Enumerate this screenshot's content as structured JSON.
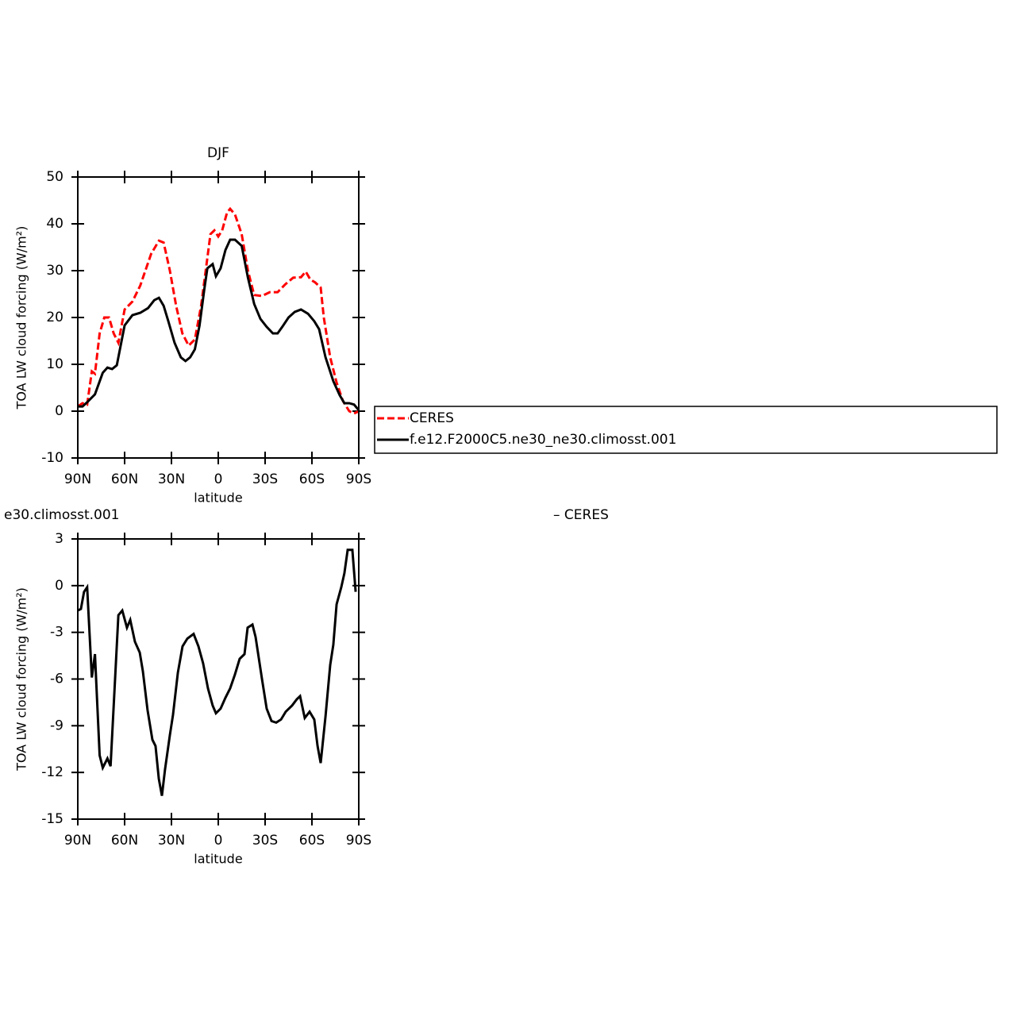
{
  "chart_data": [
    {
      "type": "line",
      "title": "DJF",
      "ylabel": "TOA LW cloud forcing (W/m²)",
      "xlabel": "latitude",
      "xlim": [
        90,
        -90
      ],
      "xticks": [
        {
          "value": 90,
          "label": "90N"
        },
        {
          "value": 60,
          "label": "60N"
        },
        {
          "value": 30,
          "label": "30N"
        },
        0,
        {
          "value": -30,
          "label": "30S"
        },
        {
          "value": -60,
          "label": "60S"
        },
        {
          "value": -90,
          "label": "90S"
        }
      ],
      "ylim": [
        -10,
        50
      ],
      "yticks": [
        -10,
        0,
        10,
        20,
        30,
        40,
        50
      ],
      "legend": "right",
      "series": [
        {
          "name": "CERES",
          "color": "#ff0000",
          "linestyle": "dashed",
          "x": [
            90,
            87,
            84,
            81,
            79,
            76,
            73,
            70,
            67,
            64,
            60,
            55,
            50,
            43,
            38,
            35,
            31,
            27,
            23,
            19,
            15,
            11,
            7,
            5,
            2.5,
            0,
            -2.5,
            -5.6,
            -7.6,
            -10.7,
            -15,
            -19,
            -23,
            -28,
            -33,
            -38,
            -43,
            -48,
            -53,
            -56,
            -59,
            -62,
            -65.6,
            -67.6,
            -71.7,
            -75.8,
            -79.8,
            -83.9,
            -87,
            -90
          ],
          "values": [
            1.0,
            1.7,
            1.4,
            8.5,
            8.0,
            16.6,
            20.0,
            20.0,
            16.6,
            14.6,
            21.7,
            23.4,
            26.8,
            33.6,
            36.4,
            36.0,
            30.0,
            22.5,
            16.6,
            14.0,
            15.3,
            22.5,
            32.7,
            37.8,
            38.6,
            37.3,
            38.6,
            42.4,
            43.2,
            42.0,
            37.8,
            30.0,
            24.8,
            24.6,
            25.4,
            25.4,
            27.1,
            28.5,
            28.6,
            29.8,
            28.1,
            27.5,
            26.4,
            20.0,
            11.5,
            6.1,
            2.2,
            0.0,
            -0.5,
            0.0
          ]
        },
        {
          "name": "f.e12.F2000C5.ne30_ne30.climosst.001",
          "color": "#000000",
          "linestyle": "solid",
          "x": [
            90,
            87,
            84,
            79,
            74,
            71,
            68,
            65,
            60,
            55,
            50,
            45,
            41,
            38,
            35,
            32,
            28,
            24,
            21,
            18,
            15,
            12,
            9,
            7,
            3.6,
            1.5,
            -1.5,
            -4.6,
            -7.6,
            -10.7,
            -15,
            -19,
            -23,
            -27,
            -31,
            -35,
            -38,
            -41,
            -45,
            -49,
            -53,
            -57.5,
            -61.5,
            -64.6,
            -68.7,
            -73.7,
            -77.8,
            -80.8,
            -83.9,
            -87,
            -90
          ],
          "values": [
            1.0,
            1.0,
            1.9,
            3.6,
            8.2,
            9.3,
            9.0,
            9.8,
            18.3,
            20.5,
            21.0,
            22.0,
            23.7,
            24.2,
            22.5,
            19.2,
            14.6,
            11.5,
            10.7,
            11.5,
            13.2,
            18.3,
            25.9,
            30.5,
            31.4,
            28.8,
            30.5,
            34.4,
            36.6,
            36.6,
            35.3,
            28.5,
            22.9,
            19.7,
            18.0,
            16.6,
            16.6,
            18.0,
            20.0,
            21.2,
            21.7,
            20.8,
            19.2,
            17.5,
            11.5,
            6.4,
            3.4,
            1.7,
            1.7,
            1.4,
            0.2
          ]
        }
      ]
    },
    {
      "type": "line",
      "title": "e30.climosst.001",
      "title_right": "– CERES",
      "ylabel": "TOA LW cloud forcing (W/m²)",
      "xlabel": "latitude",
      "xlim": [
        90,
        -90
      ],
      "xticks": [
        {
          "value": 90,
          "label": "90N"
        },
        {
          "value": 60,
          "label": "60N"
        },
        {
          "value": 30,
          "label": "30N"
        },
        0,
        {
          "value": -30,
          "label": "30S"
        },
        {
          "value": -60,
          "label": "60S"
        },
        {
          "value": -90,
          "label": "90S"
        }
      ],
      "ylim": [
        -15,
        3
      ],
      "yticks": [
        -15,
        -12,
        -9,
        -6,
        -3,
        0,
        3
      ],
      "series": [
        {
          "color": "#000000",
          "linestyle": "solid",
          "x": [
            90,
            88,
            86,
            84,
            81,
            79,
            76,
            74,
            71,
            69,
            64,
            61.5,
            58.5,
            56.4,
            53.4,
            50.3,
            48.3,
            45.3,
            42.2,
            40.2,
            38.1,
            36.1,
            34.1,
            31,
            29,
            25.9,
            22.9,
            19.8,
            15.8,
            12.7,
            9.7,
            6.6,
            3.6,
            1.5,
            -1.5,
            -4.6,
            -7.6,
            -10.7,
            -13.7,
            -16.8,
            -18.8,
            -21.9,
            -23.9,
            -28,
            -31,
            -34.1,
            -37.1,
            -40.2,
            -43.2,
            -47.3,
            -50.3,
            -52.4,
            -55.4,
            -58.5,
            -61.5,
            -63.6,
            -65.6,
            -68.7,
            -71.7,
            -73.7,
            -75.8,
            -78.8,
            -80.8,
            -82.9,
            -85.9,
            -88
          ],
          "values": [
            -1.6,
            -1.5,
            -0.4,
            -0.1,
            -5.9,
            -4.4,
            -10.9,
            -11.7,
            -11.1,
            -11.6,
            -1.9,
            -1.6,
            -2.7,
            -2.2,
            -3.6,
            -4.3,
            -5.5,
            -8.0,
            -9.9,
            -10.3,
            -12.4,
            -13.5,
            -11.8,
            -9.6,
            -8.3,
            -5.6,
            -3.9,
            -3.4,
            -3.1,
            -3.9,
            -5.0,
            -6.6,
            -7.7,
            -8.2,
            -7.9,
            -7.2,
            -6.6,
            -5.7,
            -4.7,
            -4.4,
            -2.7,
            -2.5,
            -3.3,
            -6.0,
            -7.9,
            -8.7,
            -8.8,
            -8.6,
            -8.1,
            -7.7,
            -7.3,
            -7.1,
            -8.5,
            -8.1,
            -8.6,
            -10.3,
            -11.4,
            -8.4,
            -5.1,
            -3.8,
            -1.2,
            -0.1,
            0.8,
            2.3,
            2.3,
            -0.4
          ]
        }
      ]
    }
  ]
}
